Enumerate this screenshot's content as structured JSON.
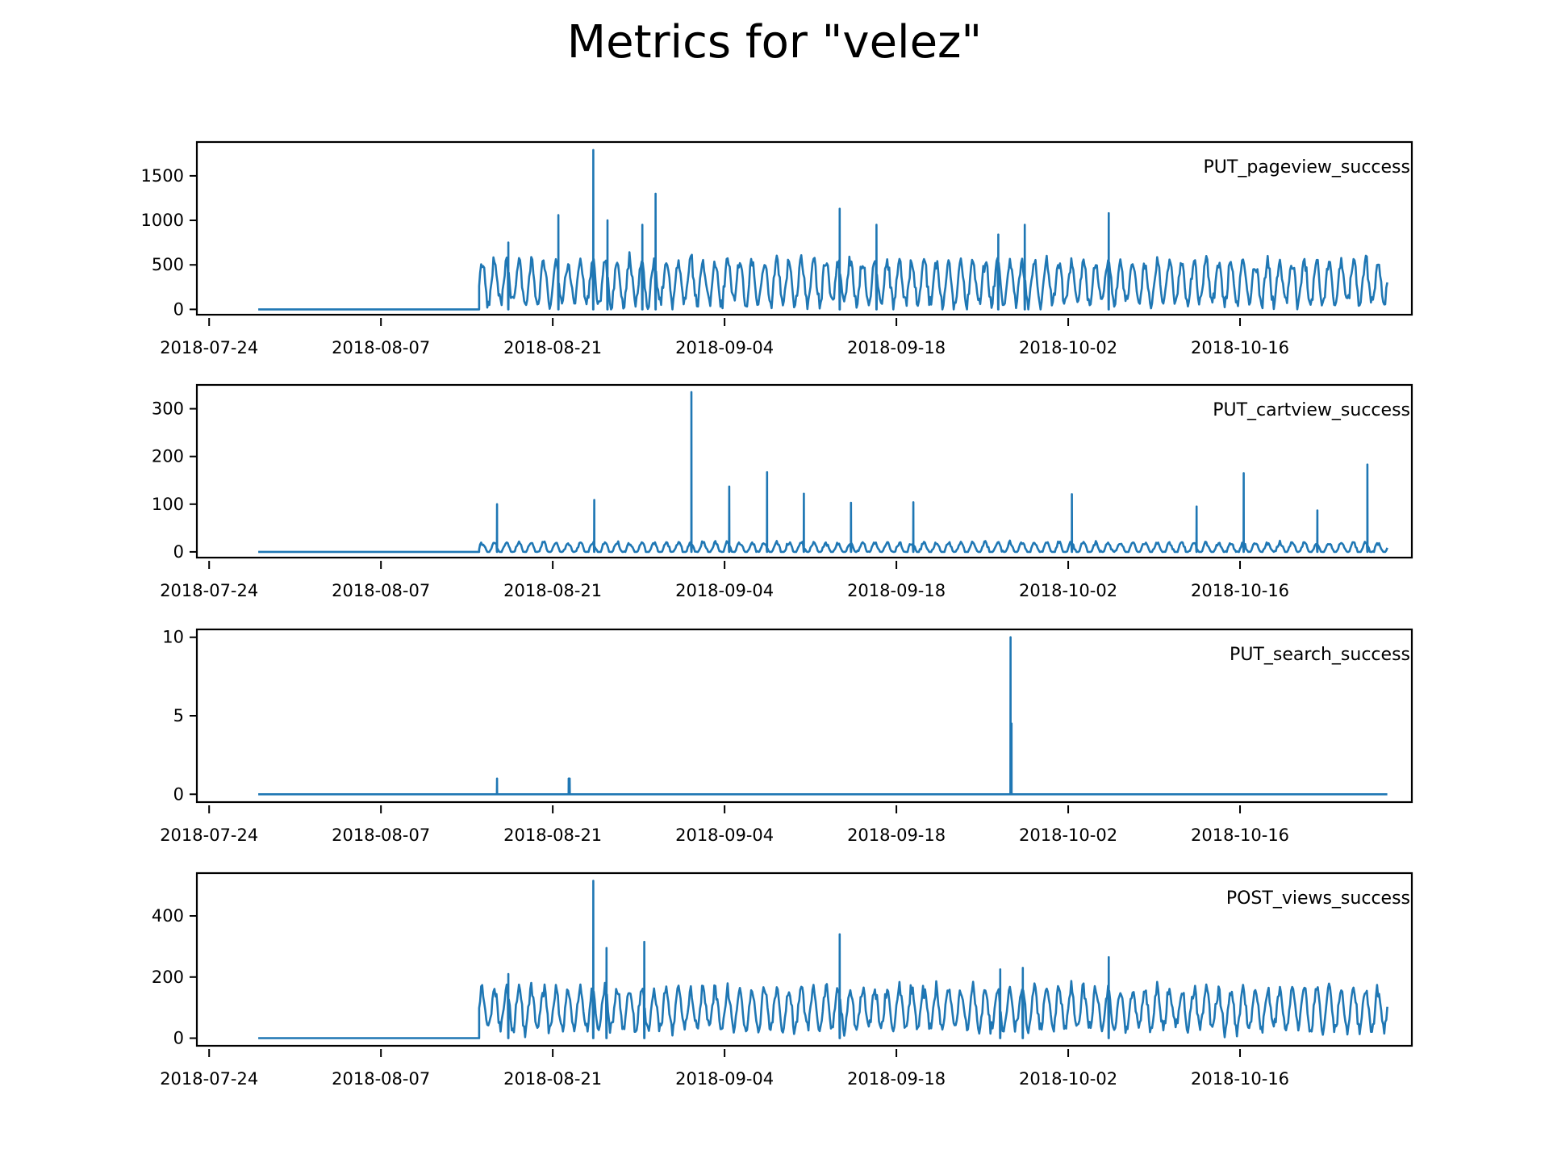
{
  "figure": {
    "title": "Metrics for \"velez\""
  },
  "colors": {
    "line": "#1f77b4",
    "axes": "#000000",
    "background": "#ffffff"
  },
  "chart_data": [
    {
      "type": "line",
      "label": "PUT_pageview_success",
      "label_placement": "top-right",
      "x_start": "2018-07-28",
      "x_jump": "2018-08-15",
      "x_end": "2018-10-28",
      "xlim": [
        "2018-07-23",
        "2018-10-30"
      ],
      "xticks": [
        "2018-07-24",
        "2018-08-07",
        "2018-08-21",
        "2018-09-04",
        "2018-09-18",
        "2018-10-02",
        "2018-10-16"
      ],
      "yticks": [
        0,
        500,
        1000,
        1500
      ],
      "ylim": [
        -60,
        1880
      ],
      "daily_base": 300,
      "daily_amplitude": 260,
      "peaks": [
        {
          "date": "2018-08-24",
          "value": 1790
        },
        {
          "date": "2018-08-29",
          "value": 1300
        },
        {
          "date": "2018-08-21",
          "value": 1060
        },
        {
          "date": "2018-10-05",
          "value": 1080
        },
        {
          "date": "2018-09-13",
          "value": 1130
        },
        {
          "date": "2018-08-25",
          "value": 1000
        },
        {
          "date": "2018-08-28",
          "value": 950
        },
        {
          "date": "2018-09-16",
          "value": 950
        },
        {
          "date": "2018-09-28",
          "value": 950
        },
        {
          "date": "2018-09-26",
          "value": 840
        },
        {
          "date": "2018-08-17",
          "value": 750
        }
      ]
    },
    {
      "type": "line",
      "label": "PUT_cartview_success",
      "label_placement": "top-right",
      "x_start": "2018-07-28",
      "x_jump": "2018-08-15",
      "x_end": "2018-10-28",
      "xlim": [
        "2018-07-23",
        "2018-10-30"
      ],
      "xticks": [
        "2018-07-24",
        "2018-08-07",
        "2018-08-21",
        "2018-09-04",
        "2018-09-18",
        "2018-10-02",
        "2018-10-16"
      ],
      "yticks": [
        0,
        100,
        200,
        300
      ],
      "ylim": [
        -12,
        350
      ],
      "daily_base": 8,
      "daily_amplitude": 12,
      "peaks": [
        {
          "date": "2018-09-01",
          "value": 335
        },
        {
          "date": "2018-10-26",
          "value": 183
        },
        {
          "date": "2018-09-07",
          "value": 167
        },
        {
          "date": "2018-10-16",
          "value": 165
        },
        {
          "date": "2018-09-04",
          "value": 137
        },
        {
          "date": "2018-09-10",
          "value": 122
        },
        {
          "date": "2018-10-02",
          "value": 121
        },
        {
          "date": "2018-08-24",
          "value": 109
        },
        {
          "date": "2018-08-16",
          "value": 100
        },
        {
          "date": "2018-09-14",
          "value": 103
        },
        {
          "date": "2018-09-19",
          "value": 104
        },
        {
          "date": "2018-10-12",
          "value": 95
        },
        {
          "date": "2018-10-22",
          "value": 87
        }
      ]
    },
    {
      "type": "line",
      "label": "PUT_search_success",
      "label_placement": "top-right",
      "x_start": "2018-07-28",
      "x_jump": "2018-08-15",
      "x_end": "2018-10-28",
      "xlim": [
        "2018-07-23",
        "2018-10-30"
      ],
      "xticks": [
        "2018-07-24",
        "2018-08-07",
        "2018-08-21",
        "2018-09-04",
        "2018-09-18",
        "2018-10-02",
        "2018-10-16"
      ],
      "yticks": [
        0,
        5,
        10
      ],
      "ylim": [
        -0.5,
        10.5
      ],
      "daily_base": 0,
      "daily_amplitude": 0,
      "peaks": [
        {
          "date": "2018-09-27",
          "value": 10
        },
        {
          "date": "2018-09-27",
          "value": 4.5
        },
        {
          "date": "2018-08-16",
          "value": 1
        },
        {
          "date": "2018-08-22",
          "value": 1
        },
        {
          "date": "2018-08-22",
          "value": 1
        }
      ]
    },
    {
      "type": "line",
      "label": "POST_views_success",
      "label_placement": "top-right",
      "x_start": "2018-07-28",
      "x_jump": "2018-08-15",
      "x_end": "2018-10-28",
      "xlim": [
        "2018-07-23",
        "2018-10-30"
      ],
      "xticks": [
        "2018-07-24",
        "2018-08-07",
        "2018-08-21",
        "2018-09-04",
        "2018-09-18",
        "2018-10-02",
        "2018-10-16"
      ],
      "yticks": [
        0,
        200,
        400
      ],
      "ylim": [
        -25,
        540
      ],
      "daily_base": 95,
      "daily_amplitude": 70,
      "peaks": [
        {
          "date": "2018-08-24",
          "value": 515
        },
        {
          "date": "2018-09-13",
          "value": 340
        },
        {
          "date": "2018-08-28",
          "value": 315
        },
        {
          "date": "2018-10-05",
          "value": 265
        },
        {
          "date": "2018-08-25",
          "value": 295
        },
        {
          "date": "2018-09-26",
          "value": 225
        },
        {
          "date": "2018-09-28",
          "value": 230
        },
        {
          "date": "2018-08-17",
          "value": 210
        }
      ]
    }
  ]
}
